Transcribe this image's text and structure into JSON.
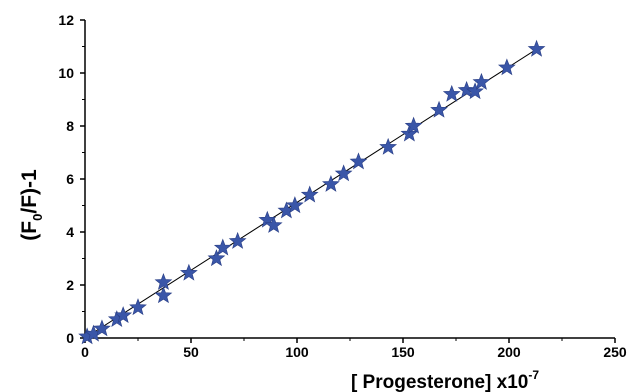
{
  "chart_data": {
    "type": "scatter",
    "title": "",
    "xlabel": "[ Progesterone] x10",
    "xlabel_exponent": "-7",
    "ylabel_main": "(F",
    "ylabel_sub": "0",
    "ylabel_rest": "/F)-1",
    "xlim": [
      0,
      250
    ],
    "ylim": [
      0,
      12
    ],
    "xticks": [
      0,
      50,
      100,
      150,
      200,
      250
    ],
    "yticks": [
      0,
      2,
      4,
      6,
      8,
      10,
      12
    ],
    "grid": false,
    "legend": "none",
    "marker": "star",
    "marker_color": "#3a56a8",
    "fit_line": {
      "x": [
        0,
        213
      ],
      "y": [
        0,
        10.9
      ],
      "color": "#000000"
    },
    "points": [
      {
        "x": 1,
        "y": 0.05
      },
      {
        "x": 4,
        "y": 0.15
      },
      {
        "x": 8,
        "y": 0.35
      },
      {
        "x": 15,
        "y": 0.7
      },
      {
        "x": 18,
        "y": 0.85
      },
      {
        "x": 25,
        "y": 1.15
      },
      {
        "x": 37,
        "y": 1.6
      },
      {
        "x": 37,
        "y": 2.1
      },
      {
        "x": 49,
        "y": 2.45
      },
      {
        "x": 62,
        "y": 3.0
      },
      {
        "x": 65,
        "y": 3.4
      },
      {
        "x": 72,
        "y": 3.65
      },
      {
        "x": 86,
        "y": 4.45
      },
      {
        "x": 89,
        "y": 4.25
      },
      {
        "x": 95,
        "y": 4.8
      },
      {
        "x": 99,
        "y": 5.0
      },
      {
        "x": 106,
        "y": 5.4
      },
      {
        "x": 116,
        "y": 5.8
      },
      {
        "x": 122,
        "y": 6.2
      },
      {
        "x": 129,
        "y": 6.65
      },
      {
        "x": 143,
        "y": 7.2
      },
      {
        "x": 153,
        "y": 7.7
      },
      {
        "x": 155,
        "y": 8.0
      },
      {
        "x": 167,
        "y": 8.6
      },
      {
        "x": 173,
        "y": 9.2
      },
      {
        "x": 180,
        "y": 9.35
      },
      {
        "x": 184,
        "y": 9.3
      },
      {
        "x": 187,
        "y": 9.65
      },
      {
        "x": 199,
        "y": 10.2
      },
      {
        "x": 213,
        "y": 10.9
      }
    ]
  }
}
